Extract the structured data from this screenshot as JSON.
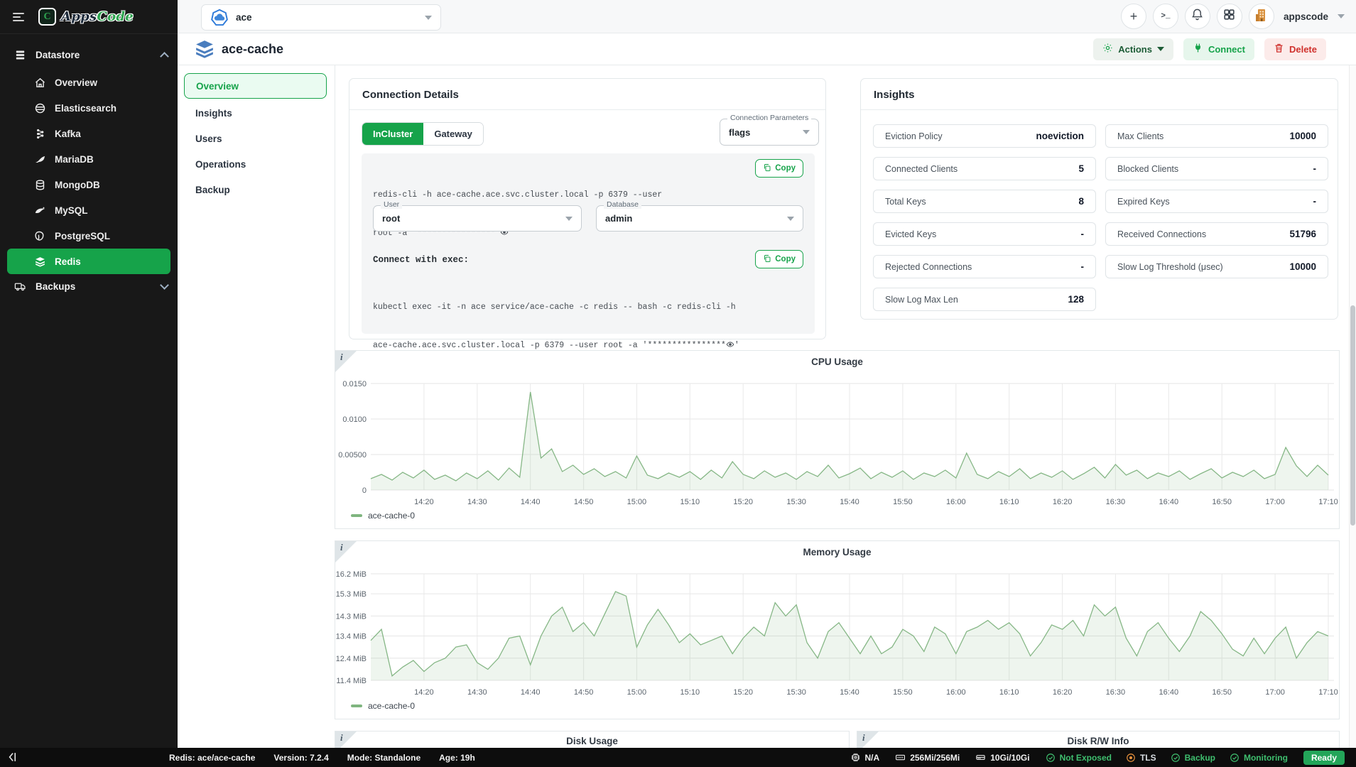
{
  "sidebar": {
    "logo_apps": "Apps",
    "logo_code": "Code",
    "group": "Datastore",
    "items": [
      {
        "label": "Overview",
        "icon": "home-icon"
      },
      {
        "label": "Elasticsearch",
        "icon": "elasticsearch-icon"
      },
      {
        "label": "Kafka",
        "icon": "kafka-icon"
      },
      {
        "label": "MariaDB",
        "icon": "mariadb-icon"
      },
      {
        "label": "MongoDB",
        "icon": "mongodb-icon"
      },
      {
        "label": "MySQL",
        "icon": "mysql-icon"
      },
      {
        "label": "PostgreSQL",
        "icon": "postgresql-icon"
      },
      {
        "label": "Redis",
        "icon": "redis-icon"
      }
    ],
    "active": "Redis",
    "backups": "Backups"
  },
  "topbar": {
    "cluster": "ace",
    "user": "appscode"
  },
  "titlebar": {
    "title": "ace-cache",
    "actions_label": "Actions",
    "connect_label": "Connect",
    "delete_label": "Delete"
  },
  "subnav": {
    "items": [
      "Overview",
      "Insights",
      "Users",
      "Operations",
      "Backup"
    ],
    "active": "Overview"
  },
  "connection": {
    "title": "Connection Details",
    "tabs": [
      "InCluster",
      "Gateway"
    ],
    "active_tab": "InCluster",
    "param_label": "Connection Parameters",
    "param_value": "flags",
    "copy_label": "Copy",
    "cli_line1": "redis-cli -h ace-cache.ace.svc.cluster.local -p 6379 --user",
    "cli_line2_prefix": "root -a '**************** ",
    "cli_line2_suffix": " '",
    "user_label": "User",
    "user_value": "root",
    "db_label": "Database",
    "db_value": "admin",
    "exec_label": "Connect with exec:",
    "exec_line1": "kubectl exec -it -n ace service/ace-cache -c redis -- bash -c redis-cli -h",
    "exec_line2_prefix": "ace-cache.ace.svc.cluster.local -p 6379 --user root -a '****************",
    "exec_line2_suffix": "'"
  },
  "insights": {
    "title": "Insights",
    "metrics": [
      {
        "label": "Eviction Policy",
        "value": "noeviction"
      },
      {
        "label": "Max Clients",
        "value": "10000"
      },
      {
        "label": "Connected Clients",
        "value": "5"
      },
      {
        "label": "Blocked Clients",
        "value": "-"
      },
      {
        "label": "Total Keys",
        "value": "8"
      },
      {
        "label": "Expired Keys",
        "value": "-"
      },
      {
        "label": "Evicted Keys",
        "value": "-"
      },
      {
        "label": "Received Connections",
        "value": "51796"
      },
      {
        "label": "Rejected Connections",
        "value": "-"
      },
      {
        "label": "Slow Log Threshold (μsec)",
        "value": "10000"
      },
      {
        "label": "Slow Log Max Len",
        "value": "128"
      }
    ]
  },
  "chart_data": [
    {
      "type": "line",
      "title": "CPU Usage",
      "unit": "cores",
      "x_start": "14:10",
      "x_step_min": 2,
      "x_ticks": [
        "14:20",
        "14:30",
        "14:40",
        "14:50",
        "15:00",
        "15:10",
        "15:20",
        "15:30",
        "15:40",
        "15:50",
        "16:00",
        "16:10",
        "16:20",
        "16:30",
        "16:40",
        "16:50",
        "17:00",
        "17:10"
      ],
      "y_ticks": [
        {
          "label": "0",
          "value": 0
        },
        {
          "label": "0.00500",
          "value": 0.005
        },
        {
          "label": "0.0100",
          "value": 0.01
        },
        {
          "label": "0.0150",
          "value": 0.015
        }
      ],
      "ylim": [
        0,
        0.015
      ],
      "grid": true,
      "legend_position": "bottom-left",
      "series": [
        {
          "name": "ace-cache-0",
          "values": [
            0.0016,
            0.0022,
            0.0014,
            0.0025,
            0.0017,
            0.0028,
            0.0015,
            0.0021,
            0.0013,
            0.0024,
            0.0016,
            0.0027,
            0.0014,
            0.0031,
            0.0018,
            0.0138,
            0.0045,
            0.0058,
            0.0026,
            0.0035,
            0.0022,
            0.003,
            0.0019,
            0.0026,
            0.0017,
            0.0048,
            0.0021,
            0.0016,
            0.0024,
            0.0018,
            0.0026,
            0.0015,
            0.0028,
            0.0017,
            0.004,
            0.0022,
            0.0016,
            0.0027,
            0.0018,
            0.0024,
            0.0015,
            0.0026,
            0.0019,
            0.0035,
            0.0017,
            0.0023,
            0.0031,
            0.0016,
            0.0025,
            0.0018,
            0.0027,
            0.0015,
            0.0024,
            0.0019,
            0.0028,
            0.0017,
            0.0052,
            0.0022,
            0.0016,
            0.0026,
            0.0019,
            0.003,
            0.0016,
            0.0024,
            0.0018,
            0.0027,
            0.0015,
            0.0023,
            0.0032,
            0.0017,
            0.0036,
            0.0021,
            0.0028,
            0.0016,
            0.0024,
            0.0019,
            0.0027,
            0.0015,
            0.0023,
            0.003,
            0.0017,
            0.0025,
            0.0019,
            0.0028,
            0.0016,
            0.0022,
            0.006,
            0.0034,
            0.0019,
            0.0035,
            0.0021
          ]
        }
      ]
    },
    {
      "type": "line",
      "title": "Memory Usage",
      "unit": "MiB",
      "x_start": "14:10",
      "x_step_min": 2,
      "x_ticks": [
        "14:20",
        "14:30",
        "14:40",
        "14:50",
        "15:00",
        "15:10",
        "15:20",
        "15:30",
        "15:40",
        "15:50",
        "16:00",
        "16:10",
        "16:20",
        "16:30",
        "16:40",
        "16:50",
        "17:00",
        "17:10"
      ],
      "y_ticks": [
        {
          "label": "11.4 MiB",
          "value": 11.4
        },
        {
          "label": "12.4 MiB",
          "value": 12.4
        },
        {
          "label": "13.4 MiB",
          "value": 13.4
        },
        {
          "label": "14.3 MiB",
          "value": 14.3
        },
        {
          "label": "15.3 MiB",
          "value": 15.3
        },
        {
          "label": "16.2 MiB",
          "value": 16.2
        }
      ],
      "ylim": [
        11.4,
        16.2
      ],
      "grid": true,
      "legend_position": "bottom-left",
      "series": [
        {
          "name": "ace-cache-0",
          "values": [
            13.2,
            13.7,
            11.6,
            12.0,
            12.3,
            11.8,
            12.2,
            12.4,
            12.9,
            13.0,
            12.2,
            11.9,
            12.4,
            13.3,
            13.4,
            12.1,
            13.4,
            14.3,
            14.7,
            13.6,
            14.0,
            13.4,
            14.4,
            15.4,
            15.2,
            12.9,
            13.9,
            14.6,
            13.9,
            13.1,
            13.5,
            13.0,
            13.2,
            13.4,
            12.6,
            13.3,
            13.8,
            13.4,
            14.9,
            14.3,
            14.8,
            13.1,
            12.4,
            13.6,
            14.0,
            13.3,
            12.6,
            13.4,
            12.6,
            12.9,
            13.7,
            13.4,
            12.7,
            13.8,
            13.5,
            12.6,
            13.6,
            13.8,
            14.1,
            13.7,
            14.0,
            13.5,
            12.5,
            13.1,
            13.9,
            13.7,
            14.1,
            13.4,
            14.8,
            14.3,
            14.7,
            13.3,
            12.5,
            13.6,
            14.0,
            13.3,
            12.7,
            13.4,
            14.5,
            14.1,
            13.5,
            12.8,
            12.5,
            13.3,
            12.6,
            13.3,
            13.8,
            12.4,
            13.1,
            13.6,
            13.4
          ]
        }
      ]
    }
  ],
  "bottom_panels": [
    {
      "title": "Disk Usage"
    },
    {
      "title": "Disk R/W Info"
    }
  ],
  "statusbar": {
    "left": [
      "Redis: ace/ace-cache",
      "Version: 7.2.4",
      "Mode: Standalone",
      "Age: 19h"
    ],
    "resources": [
      {
        "icon": "cpu-icon",
        "text": "N/A"
      },
      {
        "icon": "memory-icon",
        "text": "256Mi/256Mi"
      },
      {
        "icon": "storage-icon",
        "text": "10Gi/10Gi"
      }
    ],
    "statuses": [
      {
        "icon": "check-circle-icon",
        "color": "#3fbf6f",
        "text": "Not Exposed",
        "text_color": "#3fbf6f"
      },
      {
        "icon": "dot-circle-icon",
        "color": "#e8923d",
        "text": "TLS",
        "text_color": "#d8dde2"
      },
      {
        "icon": "check-circle-icon",
        "color": "#3fbf6f",
        "text": "Backup",
        "text_color": "#3fbf6f"
      },
      {
        "icon": "check-circle-icon",
        "color": "#3fbf6f",
        "text": "Monitoring",
        "text_color": "#3fbf6f"
      }
    ],
    "ready": "Ready"
  },
  "colors": {
    "primary": "#16a34a",
    "chart_line": "#86b786",
    "delete": "#d0312d",
    "statusbar_bg": "#0d0d0d"
  }
}
